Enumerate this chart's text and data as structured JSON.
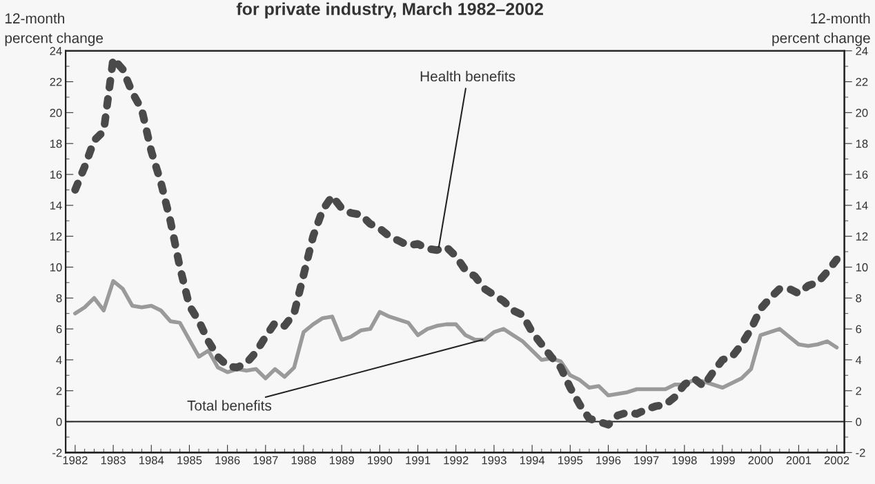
{
  "chart_data": {
    "type": "line",
    "title": "for private industry, March 1982–2002",
    "ylabel": "12-month\npercent change",
    "y2label": "12-month\npercent change",
    "x": [
      1982,
      1982.25,
      1982.5,
      1982.75,
      1983,
      1983.25,
      1983.5,
      1983.75,
      1984,
      1984.25,
      1984.5,
      1984.75,
      1985,
      1985.25,
      1985.5,
      1985.75,
      1986,
      1986.25,
      1986.5,
      1986.75,
      1987,
      1987.25,
      1987.5,
      1987.75,
      1988,
      1988.25,
      1988.5,
      1988.75,
      1989,
      1989.25,
      1989.5,
      1989.75,
      1990,
      1990.25,
      1990.5,
      1990.75,
      1991,
      1991.25,
      1991.5,
      1991.75,
      1992,
      1992.25,
      1992.5,
      1992.75,
      1993,
      1993.25,
      1993.5,
      1993.75,
      1994,
      1994.25,
      1994.5,
      1994.75,
      1995,
      1995.25,
      1995.5,
      1995.75,
      1996,
      1996.25,
      1996.5,
      1996.75,
      1997,
      1997.25,
      1997.5,
      1997.75,
      1998,
      1998.25,
      1998.5,
      1998.75,
      1999,
      1999.25,
      1999.5,
      1999.75,
      2000,
      2000.25,
      2000.5,
      2000.75,
      2001,
      2001.25,
      2001.5,
      2001.75,
      2002
    ],
    "series": [
      {
        "color": "#4a4a4a",
        "line_style": "dotted",
        "values": [
          15.0,
          16.5,
          18.2,
          18.8,
          23.5,
          22.8,
          21.3,
          20.2,
          17.5,
          15.5,
          13.0,
          10.0,
          7.5,
          6.5,
          5.2,
          4.2,
          3.6,
          3.5,
          3.8,
          4.5,
          5.5,
          6.4,
          6.2,
          7.0,
          9.5,
          12.0,
          13.7,
          14.6,
          13.8,
          13.5,
          13.4,
          12.8,
          12.5,
          12.0,
          11.7,
          11.4,
          11.5,
          11.2,
          11.1,
          11.3,
          10.7,
          9.8,
          9.4,
          8.6,
          8.2,
          7.8,
          7.2,
          6.9,
          5.8,
          5.0,
          4.2,
          3.5,
          2.2,
          1.1,
          0.2,
          0.0,
          -0.2,
          0.4,
          0.6,
          0.5,
          0.8,
          1.0,
          1.1,
          1.6,
          2.4,
          2.8,
          2.3,
          3.2,
          4.0,
          4.2,
          5.0,
          6.0,
          7.3,
          8.0,
          8.6,
          8.6,
          8.3,
          8.8,
          9.0,
          9.7,
          10.5
        ]
      },
      {
        "color": "#9a9a9a",
        "line_style": "solid",
        "values": [
          7.0,
          7.4,
          8.0,
          7.2,
          9.1,
          8.6,
          7.5,
          7.4,
          7.5,
          7.2,
          6.5,
          6.4,
          5.3,
          4.2,
          4.6,
          3.5,
          3.2,
          3.4,
          3.3,
          3.4,
          2.8,
          3.4,
          2.9,
          3.5,
          5.8,
          6.3,
          6.7,
          6.8,
          5.3,
          5.5,
          5.9,
          6.0,
          7.1,
          6.8,
          6.6,
          6.4,
          5.6,
          6.0,
          6.2,
          6.3,
          6.3,
          5.6,
          5.3,
          5.3,
          5.8,
          6.0,
          5.6,
          5.2,
          4.6,
          4.0,
          4.1,
          3.9,
          3.0,
          2.7,
          2.2,
          2.3,
          1.7,
          1.8,
          1.9,
          2.1,
          2.1,
          2.1,
          2.1,
          2.4,
          2.4,
          2.7,
          2.6,
          2.4,
          2.2,
          2.5,
          2.8,
          3.4,
          5.6,
          5.8,
          6.0,
          5.5,
          5.0,
          4.9,
          5.0,
          5.2,
          4.8
        ]
      }
    ],
    "annotations": [
      {
        "text": "Health benefits",
        "x": 1991.55,
        "y": 11.3
      },
      {
        "text": "Total benefits",
        "x": 1992.7,
        "y": 5.3
      }
    ],
    "ref_lines": [
      {
        "axis": "y",
        "value": 0,
        "color": "#222222"
      }
    ],
    "xlim": [
      1981.75,
      2002.2
    ],
    "xticks": [
      1982,
      1983,
      1984,
      1985,
      1986,
      1987,
      1988,
      1989,
      1990,
      1991,
      1992,
      1993,
      1994,
      1995,
      1996,
      1997,
      1998,
      1999,
      2000,
      2001,
      2002
    ],
    "ylim": [
      -2,
      24
    ],
    "yticks": [
      -2,
      0,
      2,
      4,
      6,
      8,
      10,
      12,
      14,
      16,
      18,
      20,
      22,
      24
    ],
    "y2lim": [
      -2,
      24
    ],
    "y2ticks": [
      -2,
      0,
      2,
      4,
      6,
      8,
      10,
      12,
      14,
      16,
      18,
      20,
      22,
      24
    ],
    "grid": false,
    "legend": false
  }
}
